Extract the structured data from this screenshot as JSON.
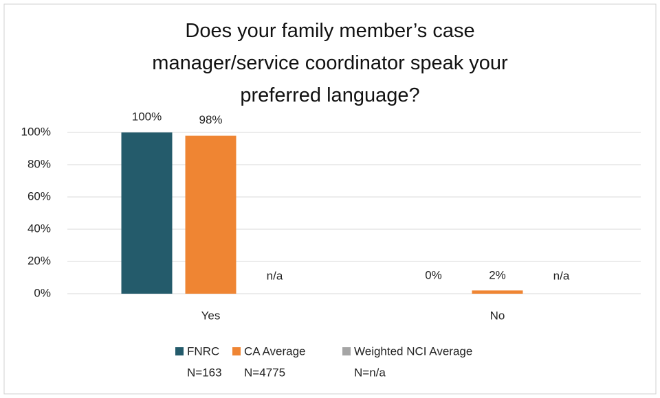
{
  "chart_data": {
    "type": "bar",
    "title": "Does your family member’s case manager/service coordinator speak your preferred language?",
    "categories": [
      "Yes",
      "No"
    ],
    "series": [
      {
        "name": "FNRC",
        "legend_note": "N=163",
        "color": "#245b6b",
        "values": [
          100,
          0
        ],
        "value_labels": [
          "100%",
          "0%"
        ]
      },
      {
        "name": "CA Average",
        "legend_note": "N=4775",
        "color": "#ef8533",
        "values": [
          98,
          2
        ],
        "value_labels": [
          "98%",
          "2%"
        ]
      },
      {
        "name": "Weighted NCI Average",
        "legend_note": "N=n/a",
        "color": "#a5a5a5",
        "values": [
          null,
          null
        ],
        "value_labels": [
          "n/a",
          "n/a"
        ]
      }
    ],
    "ylim": [
      0,
      100
    ],
    "yticks": [
      {
        "value": 0,
        "label": "0%"
      },
      {
        "value": 20,
        "label": "20%"
      },
      {
        "value": 40,
        "label": "40%"
      },
      {
        "value": 60,
        "label": "60%"
      },
      {
        "value": 80,
        "label": "80%"
      },
      {
        "value": 100,
        "label": "100%"
      }
    ],
    "grid": true,
    "legend": "bottom"
  }
}
